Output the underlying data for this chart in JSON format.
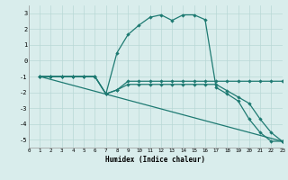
{
  "xlabel": "Humidex (Indice chaleur)",
  "xlim": [
    0,
    23
  ],
  "ylim": [
    -5.5,
    3.5
  ],
  "xticks": [
    0,
    1,
    2,
    3,
    4,
    5,
    6,
    7,
    8,
    9,
    10,
    11,
    12,
    13,
    14,
    15,
    16,
    17,
    18,
    19,
    20,
    21,
    22,
    23
  ],
  "yticks": [
    -5,
    -4,
    -3,
    -2,
    -1,
    0,
    1,
    2,
    3
  ],
  "background_color": "#d9edec",
  "grid_color": "#b8d8d6",
  "line_color": "#1e7a72",
  "line1_x": [
    1,
    2,
    3,
    4,
    5,
    6,
    7,
    8,
    9,
    10,
    11,
    12,
    13,
    14,
    15,
    16,
    17,
    18,
    19,
    20,
    21,
    22,
    23
  ],
  "line1_y": [
    -1.0,
    -1.0,
    -1.0,
    -1.0,
    -1.0,
    -1.0,
    -2.1,
    -1.85,
    -1.3,
    -1.3,
    -1.3,
    -1.3,
    -1.3,
    -1.3,
    -1.3,
    -1.3,
    -1.3,
    -1.3,
    -1.3,
    -1.3,
    -1.3,
    -1.3,
    -1.3
  ],
  "line2_x": [
    1,
    2,
    3,
    4,
    5,
    6,
    7,
    8,
    9,
    10,
    11,
    12,
    13,
    14,
    15,
    16,
    17,
    18,
    19,
    20,
    21,
    22,
    23
  ],
  "line2_y": [
    -1.0,
    -1.0,
    -1.0,
    -1.0,
    -1.0,
    -1.0,
    -2.1,
    0.5,
    1.65,
    2.25,
    2.75,
    2.9,
    2.55,
    2.9,
    2.9,
    2.6,
    -1.7,
    -2.1,
    -2.55,
    -3.7,
    -4.55,
    -5.1,
    -5.1
  ],
  "line3_x": [
    1,
    2,
    3,
    4,
    5,
    6,
    7,
    8,
    9,
    10,
    11,
    12,
    13,
    14,
    15,
    16,
    17,
    18,
    19,
    20,
    21,
    22,
    23
  ],
  "line3_y": [
    -1.0,
    -1.0,
    -1.0,
    -1.0,
    -1.0,
    -1.0,
    -2.1,
    -1.85,
    -1.5,
    -1.5,
    -1.5,
    -1.5,
    -1.5,
    -1.5,
    -1.5,
    -1.5,
    -1.5,
    -1.9,
    -2.3,
    -2.7,
    -3.7,
    -4.55,
    -5.1
  ],
  "line4_x": [
    1,
    23
  ],
  "line4_y": [
    -1.0,
    -5.1
  ]
}
